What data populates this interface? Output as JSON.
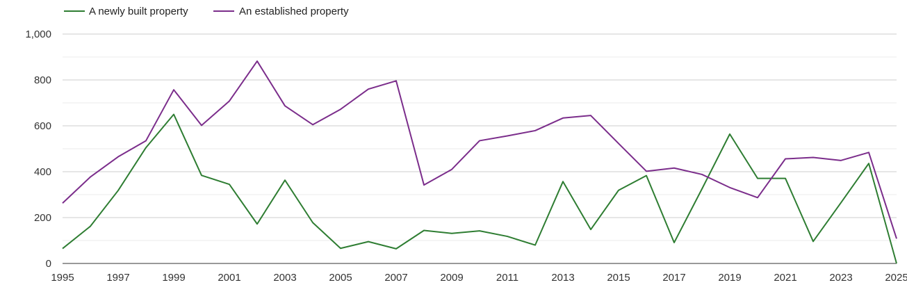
{
  "chart_data": {
    "type": "line",
    "x": [
      1995,
      1996,
      1997,
      1998,
      1999,
      2000,
      2001,
      2002,
      2003,
      2004,
      2005,
      2006,
      2007,
      2008,
      2009,
      2010,
      2011,
      2012,
      2013,
      2014,
      2015,
      2016,
      2017,
      2018,
      2019,
      2020,
      2021,
      2022,
      2023,
      2024,
      2025
    ],
    "series": [
      {
        "name": "A newly built property",
        "color": "#2e7d32",
        "values": [
          65,
          162,
          318,
          505,
          650,
          384,
          345,
          172,
          363,
          178,
          66,
          95,
          64,
          144,
          131,
          142,
          118,
          80,
          357,
          148,
          319,
          383,
          91,
          325,
          564,
          371,
          371,
          96,
          265,
          436,
          0
        ]
      },
      {
        "name": "An established property",
        "color": "#7b2d8b",
        "values": [
          263,
          377,
          465,
          535,
          757,
          602,
          708,
          882,
          687,
          605,
          672,
          760,
          796,
          342,
          410,
          535,
          556,
          579,
          634,
          645,
          523,
          402,
          416,
          388,
          331,
          287,
          456,
          462,
          449,
          484,
          108
        ]
      }
    ],
    "ylim": [
      0,
      1000
    ],
    "y_ticks": [
      "0",
      "200",
      "400",
      "600",
      "800",
      "1,000"
    ],
    "x_ticks": [
      "1995",
      "1997",
      "1999",
      "2001",
      "2003",
      "2005",
      "2007",
      "2009",
      "2011",
      "2013",
      "2015",
      "2017",
      "2019",
      "2021",
      "2023",
      "2025"
    ],
    "grid": true,
    "legend": "top-left",
    "title": "",
    "xlabel": "",
    "ylabel": ""
  }
}
